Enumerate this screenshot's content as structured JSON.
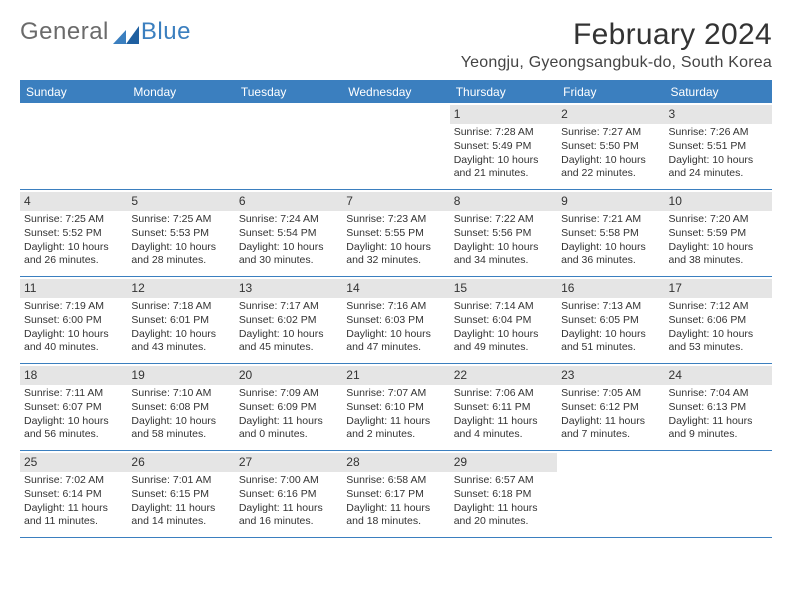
{
  "logo": {
    "text_left": "General",
    "text_right": "Blue",
    "mark_color": "#1e5fa0"
  },
  "title": "February 2024",
  "location": "Yeongju, Gyeongsangbuk-do, South Korea",
  "colors": {
    "header_bar": "#3b7fbf",
    "band": "#e5e5e5",
    "rule": "#3b7fbf"
  },
  "day_headers": [
    "Sunday",
    "Monday",
    "Tuesday",
    "Wednesday",
    "Thursday",
    "Friday",
    "Saturday"
  ],
  "weeks": [
    [
      {
        "empty": true
      },
      {
        "empty": true
      },
      {
        "empty": true
      },
      {
        "empty": true
      },
      {
        "day": "1",
        "sunrise": "Sunrise: 7:28 AM",
        "sunset": "Sunset: 5:49 PM",
        "daylight": "Daylight: 10 hours and 21 minutes."
      },
      {
        "day": "2",
        "sunrise": "Sunrise: 7:27 AM",
        "sunset": "Sunset: 5:50 PM",
        "daylight": "Daylight: 10 hours and 22 minutes."
      },
      {
        "day": "3",
        "sunrise": "Sunrise: 7:26 AM",
        "sunset": "Sunset: 5:51 PM",
        "daylight": "Daylight: 10 hours and 24 minutes."
      }
    ],
    [
      {
        "day": "4",
        "sunrise": "Sunrise: 7:25 AM",
        "sunset": "Sunset: 5:52 PM",
        "daylight": "Daylight: 10 hours and 26 minutes."
      },
      {
        "day": "5",
        "sunrise": "Sunrise: 7:25 AM",
        "sunset": "Sunset: 5:53 PM",
        "daylight": "Daylight: 10 hours and 28 minutes."
      },
      {
        "day": "6",
        "sunrise": "Sunrise: 7:24 AM",
        "sunset": "Sunset: 5:54 PM",
        "daylight": "Daylight: 10 hours and 30 minutes."
      },
      {
        "day": "7",
        "sunrise": "Sunrise: 7:23 AM",
        "sunset": "Sunset: 5:55 PM",
        "daylight": "Daylight: 10 hours and 32 minutes."
      },
      {
        "day": "8",
        "sunrise": "Sunrise: 7:22 AM",
        "sunset": "Sunset: 5:56 PM",
        "daylight": "Daylight: 10 hours and 34 minutes."
      },
      {
        "day": "9",
        "sunrise": "Sunrise: 7:21 AM",
        "sunset": "Sunset: 5:58 PM",
        "daylight": "Daylight: 10 hours and 36 minutes."
      },
      {
        "day": "10",
        "sunrise": "Sunrise: 7:20 AM",
        "sunset": "Sunset: 5:59 PM",
        "daylight": "Daylight: 10 hours and 38 minutes."
      }
    ],
    [
      {
        "day": "11",
        "sunrise": "Sunrise: 7:19 AM",
        "sunset": "Sunset: 6:00 PM",
        "daylight": "Daylight: 10 hours and 40 minutes."
      },
      {
        "day": "12",
        "sunrise": "Sunrise: 7:18 AM",
        "sunset": "Sunset: 6:01 PM",
        "daylight": "Daylight: 10 hours and 43 minutes."
      },
      {
        "day": "13",
        "sunrise": "Sunrise: 7:17 AM",
        "sunset": "Sunset: 6:02 PM",
        "daylight": "Daylight: 10 hours and 45 minutes."
      },
      {
        "day": "14",
        "sunrise": "Sunrise: 7:16 AM",
        "sunset": "Sunset: 6:03 PM",
        "daylight": "Daylight: 10 hours and 47 minutes."
      },
      {
        "day": "15",
        "sunrise": "Sunrise: 7:14 AM",
        "sunset": "Sunset: 6:04 PM",
        "daylight": "Daylight: 10 hours and 49 minutes."
      },
      {
        "day": "16",
        "sunrise": "Sunrise: 7:13 AM",
        "sunset": "Sunset: 6:05 PM",
        "daylight": "Daylight: 10 hours and 51 minutes."
      },
      {
        "day": "17",
        "sunrise": "Sunrise: 7:12 AM",
        "sunset": "Sunset: 6:06 PM",
        "daylight": "Daylight: 10 hours and 53 minutes."
      }
    ],
    [
      {
        "day": "18",
        "sunrise": "Sunrise: 7:11 AM",
        "sunset": "Sunset: 6:07 PM",
        "daylight": "Daylight: 10 hours and 56 minutes."
      },
      {
        "day": "19",
        "sunrise": "Sunrise: 7:10 AM",
        "sunset": "Sunset: 6:08 PM",
        "daylight": "Daylight: 10 hours and 58 minutes."
      },
      {
        "day": "20",
        "sunrise": "Sunrise: 7:09 AM",
        "sunset": "Sunset: 6:09 PM",
        "daylight": "Daylight: 11 hours and 0 minutes."
      },
      {
        "day": "21",
        "sunrise": "Sunrise: 7:07 AM",
        "sunset": "Sunset: 6:10 PM",
        "daylight": "Daylight: 11 hours and 2 minutes."
      },
      {
        "day": "22",
        "sunrise": "Sunrise: 7:06 AM",
        "sunset": "Sunset: 6:11 PM",
        "daylight": "Daylight: 11 hours and 4 minutes."
      },
      {
        "day": "23",
        "sunrise": "Sunrise: 7:05 AM",
        "sunset": "Sunset: 6:12 PM",
        "daylight": "Daylight: 11 hours and 7 minutes."
      },
      {
        "day": "24",
        "sunrise": "Sunrise: 7:04 AM",
        "sunset": "Sunset: 6:13 PM",
        "daylight": "Daylight: 11 hours and 9 minutes."
      }
    ],
    [
      {
        "day": "25",
        "sunrise": "Sunrise: 7:02 AM",
        "sunset": "Sunset: 6:14 PM",
        "daylight": "Daylight: 11 hours and 11 minutes."
      },
      {
        "day": "26",
        "sunrise": "Sunrise: 7:01 AM",
        "sunset": "Sunset: 6:15 PM",
        "daylight": "Daylight: 11 hours and 14 minutes."
      },
      {
        "day": "27",
        "sunrise": "Sunrise: 7:00 AM",
        "sunset": "Sunset: 6:16 PM",
        "daylight": "Daylight: 11 hours and 16 minutes."
      },
      {
        "day": "28",
        "sunrise": "Sunrise: 6:58 AM",
        "sunset": "Sunset: 6:17 PM",
        "daylight": "Daylight: 11 hours and 18 minutes."
      },
      {
        "day": "29",
        "sunrise": "Sunrise: 6:57 AM",
        "sunset": "Sunset: 6:18 PM",
        "daylight": "Daylight: 11 hours and 20 minutes."
      },
      {
        "empty": true
      },
      {
        "empty": true
      }
    ]
  ]
}
